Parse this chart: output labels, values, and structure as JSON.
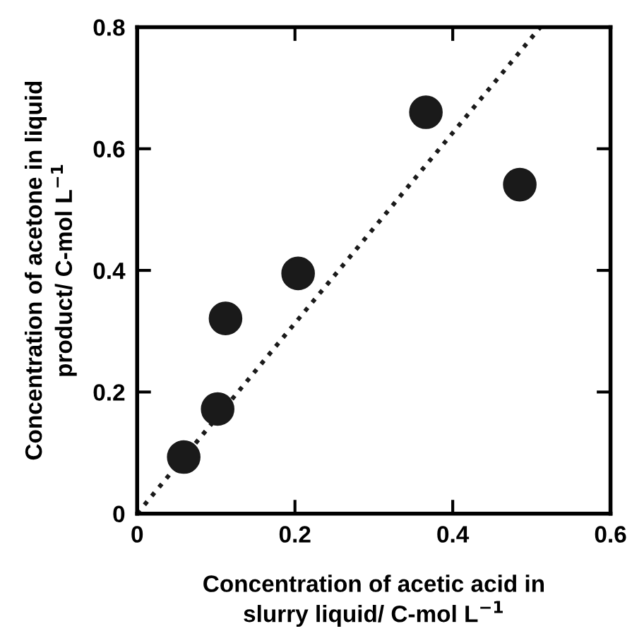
{
  "chart_data": {
    "type": "scatter",
    "xlabel": "Concentration of acetic acid in\nslurry liquid/ C-mol L$^{−1}$",
    "ylabel": "Concentration of acetone in liquid\nproduct/ C-mol L$^{−1}$",
    "xlim": [
      0,
      0.6
    ],
    "ylim": [
      0,
      0.8
    ],
    "xticks": [
      0,
      0.2,
      0.4,
      0.6
    ],
    "yticks": [
      0,
      0.2,
      0.4,
      0.6,
      0.8
    ],
    "grid": false,
    "legend": false,
    "series": [
      {
        "color": "#1a1a1a",
        "marker": "circle",
        "x": [
          0.059,
          0.102,
          0.112,
          0.204,
          0.366,
          0.485
        ],
        "values": [
          0.093,
          0.172,
          0.321,
          0.395,
          0.66,
          0.541
        ]
      },
      {
        "type": "line",
        "color": "#1a1a1a",
        "line_style": "dotted",
        "marker": "none",
        "x": [
          0,
          0.511
        ],
        "values": [
          0,
          0.8
        ]
      }
    ]
  }
}
